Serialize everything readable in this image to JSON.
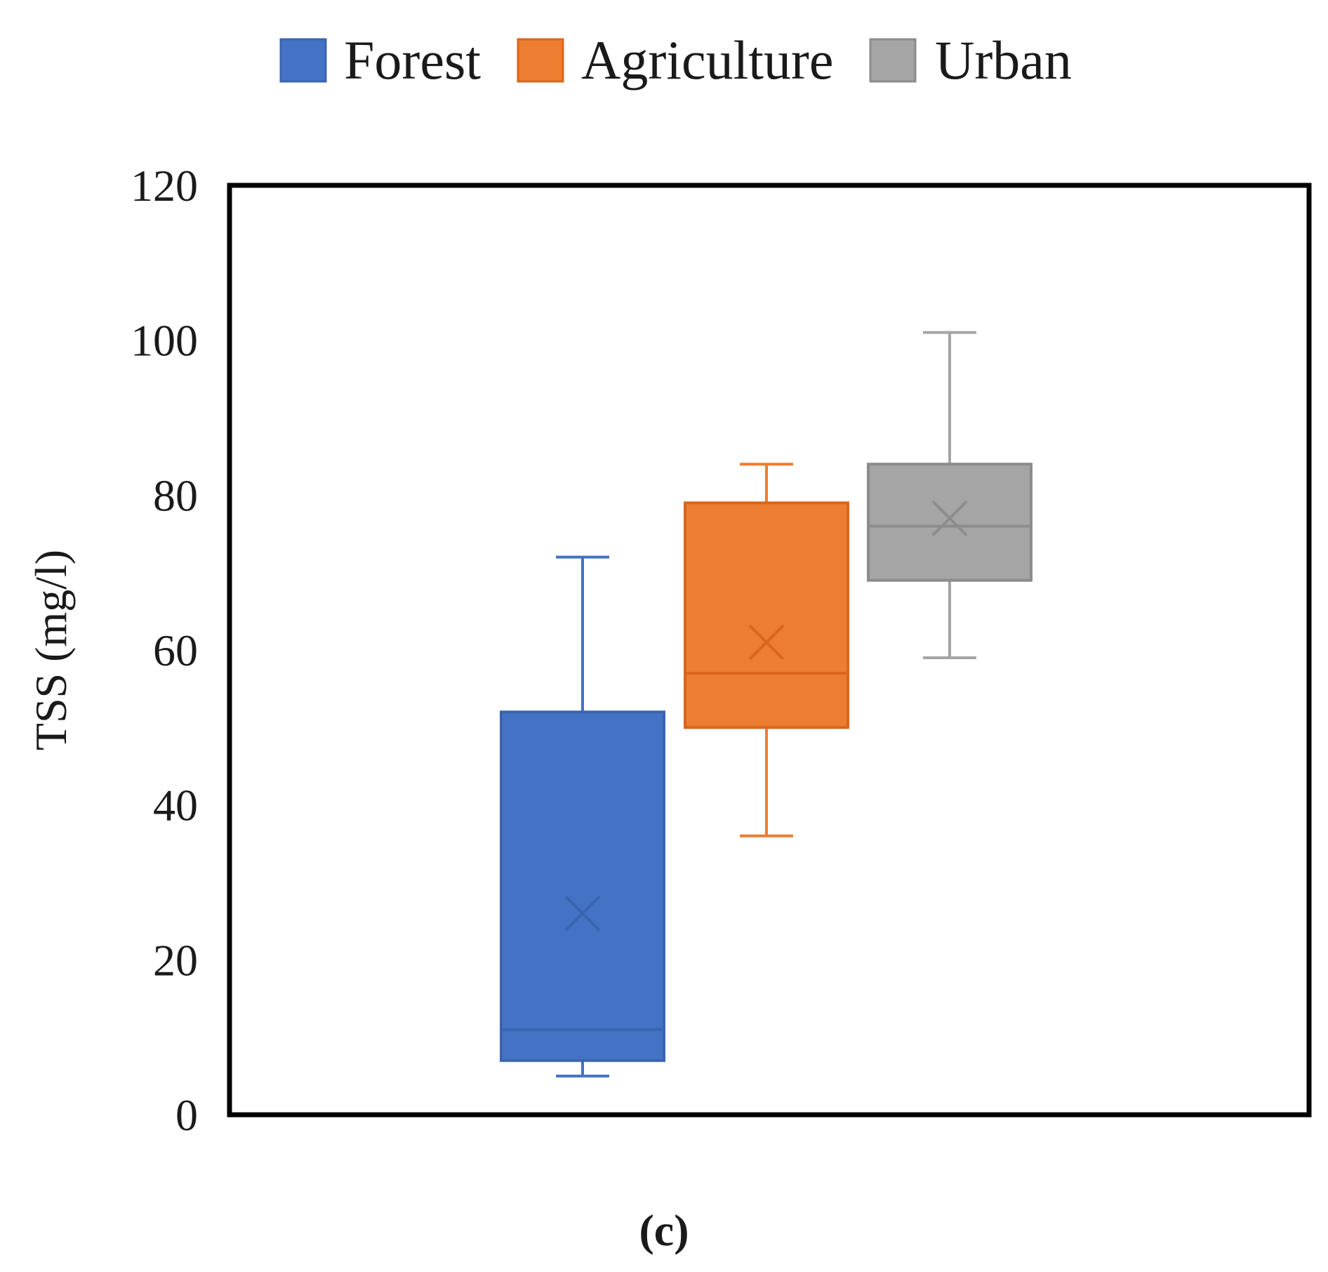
{
  "chart_data": {
    "type": "boxplot",
    "title": "",
    "xlabel": "",
    "ylabel": "TSS (mg/l)",
    "ylim": [
      0,
      120
    ],
    "yticks": [
      0,
      20,
      40,
      60,
      80,
      100,
      120
    ],
    "ytick_labels": [
      "0",
      "20",
      "40",
      "60",
      "80",
      "100",
      "120"
    ],
    "grid": false,
    "legend_position": "top-center",
    "caption": "(c)",
    "series": [
      {
        "name": "Forest",
        "color": "#4472C4",
        "edge_color": "#3A64B0",
        "min": 5,
        "q1": 7,
        "median": 11,
        "q3": 52,
        "max": 72,
        "mean": 26
      },
      {
        "name": "Agriculture",
        "color": "#ED7D31",
        "edge_color": "#D9661C",
        "min": 36,
        "q1": 50,
        "median": 57,
        "q3": 79,
        "max": 84,
        "mean": 61
      },
      {
        "name": "Urban",
        "color": "#A5A5A5",
        "edge_color": "#8C8C8C",
        "min": 59,
        "q1": 69,
        "median": 76,
        "q3": 84,
        "max": 101,
        "mean": 77
      }
    ]
  }
}
